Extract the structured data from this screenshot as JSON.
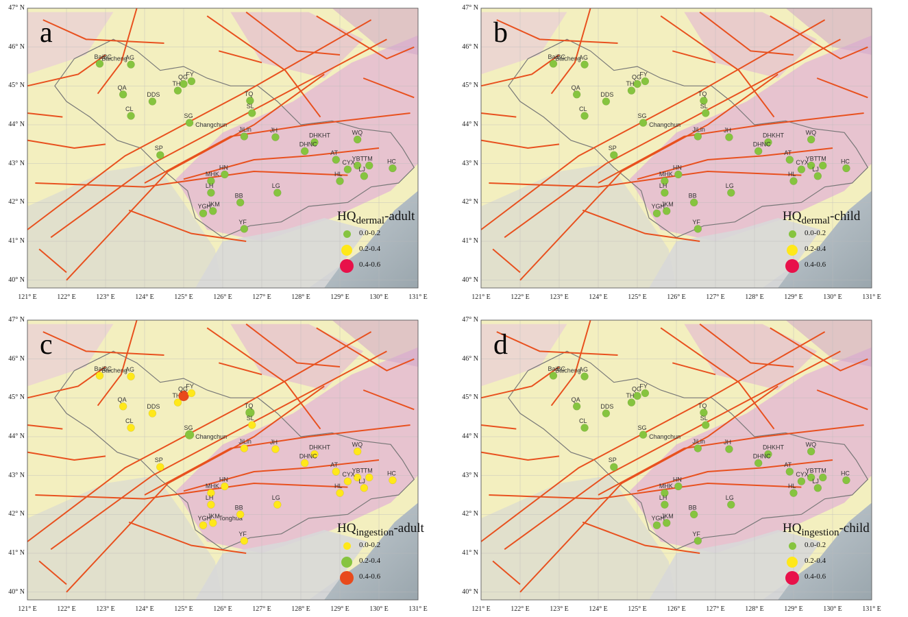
{
  "lat_ticks": [
    "40° N",
    "41° N",
    "42° N",
    "43° N",
    "44° N",
    "45° N",
    "46° N",
    "47° N"
  ],
  "lon_ticks": [
    "121° E",
    "122° E",
    "123° E",
    "124° E",
    "125° E",
    "126° E",
    "127° E",
    "128° E",
    "129° E",
    "130° E",
    "131° E"
  ],
  "map_extent": {
    "lon": [
      121,
      131
    ],
    "lat": [
      39.8,
      47
    ]
  },
  "colors": {
    "green": "#86c43f",
    "yellow": "#ffe81a",
    "red": "#e8114a",
    "orange_red": "#e84a1c",
    "fault": "#e8501e"
  },
  "sites": [
    {
      "name": "BaiBC",
      "lon": 122.85,
      "lat": 45.57
    },
    {
      "name": "AG",
      "lon": 123.65,
      "lat": 45.55
    },
    {
      "name": "QA",
      "lon": 123.45,
      "lat": 44.78
    },
    {
      "name": "DDS",
      "lon": 124.2,
      "lat": 44.6
    },
    {
      "name": "TH",
      "lon": 124.85,
      "lat": 44.88
    },
    {
      "name": "QG",
      "lon": 125.0,
      "lat": 45.05
    },
    {
      "name": "FY",
      "lon": 125.2,
      "lat": 45.12
    },
    {
      "name": "CL",
      "lon": 123.65,
      "lat": 44.23
    },
    {
      "name": "SG",
      "lon": 125.15,
      "lat": 44.05
    },
    {
      "name": "TQ",
      "lon": 126.7,
      "lat": 44.62
    },
    {
      "name": "SL",
      "lon": 126.75,
      "lat": 44.3
    },
    {
      "name": "JiLin",
      "lon": 126.55,
      "lat": 43.7
    },
    {
      "name": "JH",
      "lon": 127.35,
      "lat": 43.68
    },
    {
      "name": "DHKHT",
      "lon": 128.35,
      "lat": 43.55
    },
    {
      "name": "DHNC",
      "lon": 128.1,
      "lat": 43.32
    },
    {
      "name": "WQ",
      "lon": 129.45,
      "lat": 43.62
    },
    {
      "name": "SP",
      "lon": 124.4,
      "lat": 43.22
    },
    {
      "name": "AT",
      "lon": 128.9,
      "lat": 43.1
    },
    {
      "name": "YBT",
      "lon": 129.45,
      "lat": 42.95
    },
    {
      "name": "CYX",
      "lon": 129.2,
      "lat": 42.85
    },
    {
      "name": "TM",
      "lon": 129.75,
      "lat": 42.95
    },
    {
      "name": "HC",
      "lon": 130.35,
      "lat": 42.88
    },
    {
      "name": "HL",
      "lon": 129.0,
      "lat": 42.55
    },
    {
      "name": "LJ",
      "lon": 129.62,
      "lat": 42.68
    },
    {
      "name": "MHK",
      "lon": 125.7,
      "lat": 42.55
    },
    {
      "name": "HN",
      "lon": 126.05,
      "lat": 42.72
    },
    {
      "name": "LH",
      "lon": 125.7,
      "lat": 42.25
    },
    {
      "name": "LG",
      "lon": 127.4,
      "lat": 42.25
    },
    {
      "name": "BB",
      "lon": 126.45,
      "lat": 42.0
    },
    {
      "name": "JKM",
      "lon": 125.75,
      "lat": 41.78
    },
    {
      "name": "YGH",
      "lon": 125.5,
      "lat": 41.72
    },
    {
      "name": "YF",
      "lon": 126.55,
      "lat": 41.32
    }
  ],
  "panels": [
    {
      "label": "a",
      "legend_title": "HQ",
      "legend_sub": "dermal",
      "legend_suffix": "-adult",
      "legend_items": [
        {
          "range": "0.0-0.2",
          "color": "#86c43f"
        },
        {
          "range": "0.2-0.4",
          "color": "#ffe81a"
        },
        {
          "range": "0.4-0.6",
          "color": "#e8114a"
        }
      ],
      "place_labels": [
        {
          "text": "Baicheng",
          "lon": 122.9,
          "lat": 45.65
        },
        {
          "text": "Changchun",
          "lon": 125.3,
          "lat": 43.95
        }
      ],
      "site_classes": [
        "0.0-0.2",
        "0.0-0.2",
        "0.0-0.2",
        "0.0-0.2",
        "0.0-0.2",
        "0.0-0.2",
        "0.0-0.2",
        "0.0-0.2",
        "0.0-0.2",
        "0.0-0.2",
        "0.0-0.2",
        "0.0-0.2",
        "0.0-0.2",
        "0.0-0.2",
        "0.0-0.2",
        "0.0-0.2",
        "0.0-0.2",
        "0.0-0.2",
        "0.0-0.2",
        "0.0-0.2",
        "0.0-0.2",
        "0.0-0.2",
        "0.0-0.2",
        "0.0-0.2",
        "0.0-0.2",
        "0.0-0.2",
        "0.0-0.2",
        "0.0-0.2",
        "0.0-0.2",
        "0.0-0.2",
        "0.0-0.2",
        "0.0-0.2"
      ]
    },
    {
      "label": "b",
      "legend_title": "HQ",
      "legend_sub": "dermal",
      "legend_suffix": "-child",
      "legend_items": [
        {
          "range": "0.0-0.2",
          "color": "#86c43f"
        },
        {
          "range": "0.2-0.4",
          "color": "#ffe81a"
        },
        {
          "range": "0.4-0.6",
          "color": "#e8114a"
        }
      ],
      "place_labels": [
        {
          "text": "Baicheng",
          "lon": 122.9,
          "lat": 45.65
        },
        {
          "text": "Changchun",
          "lon": 125.3,
          "lat": 43.95
        }
      ],
      "site_classes": [
        "0.0-0.2",
        "0.0-0.2",
        "0.0-0.2",
        "0.0-0.2",
        "0.0-0.2",
        "0.0-0.2",
        "0.0-0.2",
        "0.0-0.2",
        "0.0-0.2",
        "0.0-0.2",
        "0.0-0.2",
        "0.0-0.2",
        "0.0-0.2",
        "0.0-0.2",
        "0.0-0.2",
        "0.0-0.2",
        "0.0-0.2",
        "0.0-0.2",
        "0.0-0.2",
        "0.0-0.2",
        "0.0-0.2",
        "0.0-0.2",
        "0.0-0.2",
        "0.0-0.2",
        "0.0-0.2",
        "0.0-0.2",
        "0.0-0.2",
        "0.0-0.2",
        "0.0-0.2",
        "0.0-0.2",
        "0.0-0.2",
        "0.0-0.2"
      ]
    },
    {
      "label": "c",
      "legend_title": "HQ",
      "legend_sub": "ingestion",
      "legend_suffix": "-adult",
      "legend_items": [
        {
          "range": "0.0-0.2",
          "color": "#ffe81a"
        },
        {
          "range": "0.2-0.4",
          "color": "#86c43f"
        },
        {
          "range": "0.4-0.6",
          "color": "#e84a1c"
        }
      ],
      "place_labels": [
        {
          "text": "Baicheng",
          "lon": 122.9,
          "lat": 45.65
        },
        {
          "text": "Changchun",
          "lon": 125.3,
          "lat": 43.95
        },
        {
          "text": "Tonghua",
          "lon": 125.9,
          "lat": 41.85
        }
      ],
      "site_classes": [
        "0.0-0.2",
        "0.0-0.2",
        "0.0-0.2",
        "0.0-0.2",
        "0.0-0.2",
        "0.4-0.6",
        "0.0-0.2",
        "0.0-0.2",
        "0.2-0.4",
        "0.2-0.4",
        "0.0-0.2",
        "0.0-0.2",
        "0.0-0.2",
        "0.0-0.2",
        "0.0-0.2",
        "0.0-0.2",
        "0.0-0.2",
        "0.0-0.2",
        "0.0-0.2",
        "0.0-0.2",
        "0.0-0.2",
        "0.0-0.2",
        "0.0-0.2",
        "0.0-0.2",
        "0.0-0.2",
        "0.0-0.2",
        "0.0-0.2",
        "0.0-0.2",
        "0.0-0.2",
        "0.0-0.2",
        "0.0-0.2",
        "0.0-0.2"
      ]
    },
    {
      "label": "d",
      "legend_title": "HQ",
      "legend_sub": "ingestion",
      "legend_suffix": "-child",
      "legend_items": [
        {
          "range": "0.0-0.2",
          "color": "#86c43f"
        },
        {
          "range": "0.2-0.4",
          "color": "#ffe81a"
        },
        {
          "range": "0.4-0.6",
          "color": "#e8114a"
        }
      ],
      "place_labels": [
        {
          "text": "Baicheng",
          "lon": 122.9,
          "lat": 45.65
        },
        {
          "text": "Changchun",
          "lon": 125.3,
          "lat": 43.95
        }
      ],
      "site_classes": [
        "0.0-0.2",
        "0.0-0.2",
        "0.0-0.2",
        "0.0-0.2",
        "0.0-0.2",
        "0.0-0.2",
        "0.0-0.2",
        "0.0-0.2",
        "0.0-0.2",
        "0.0-0.2",
        "0.0-0.2",
        "0.0-0.2",
        "0.0-0.2",
        "0.0-0.2",
        "0.0-0.2",
        "0.0-0.2",
        "0.0-0.2",
        "0.0-0.2",
        "0.0-0.2",
        "0.0-0.2",
        "0.0-0.2",
        "0.0-0.2",
        "0.0-0.2",
        "0.0-0.2",
        "0.0-0.2",
        "0.0-0.2",
        "0.0-0.2",
        "0.0-0.2",
        "0.0-0.2",
        "0.0-0.2",
        "0.0-0.2",
        "0.0-0.2"
      ]
    }
  ]
}
